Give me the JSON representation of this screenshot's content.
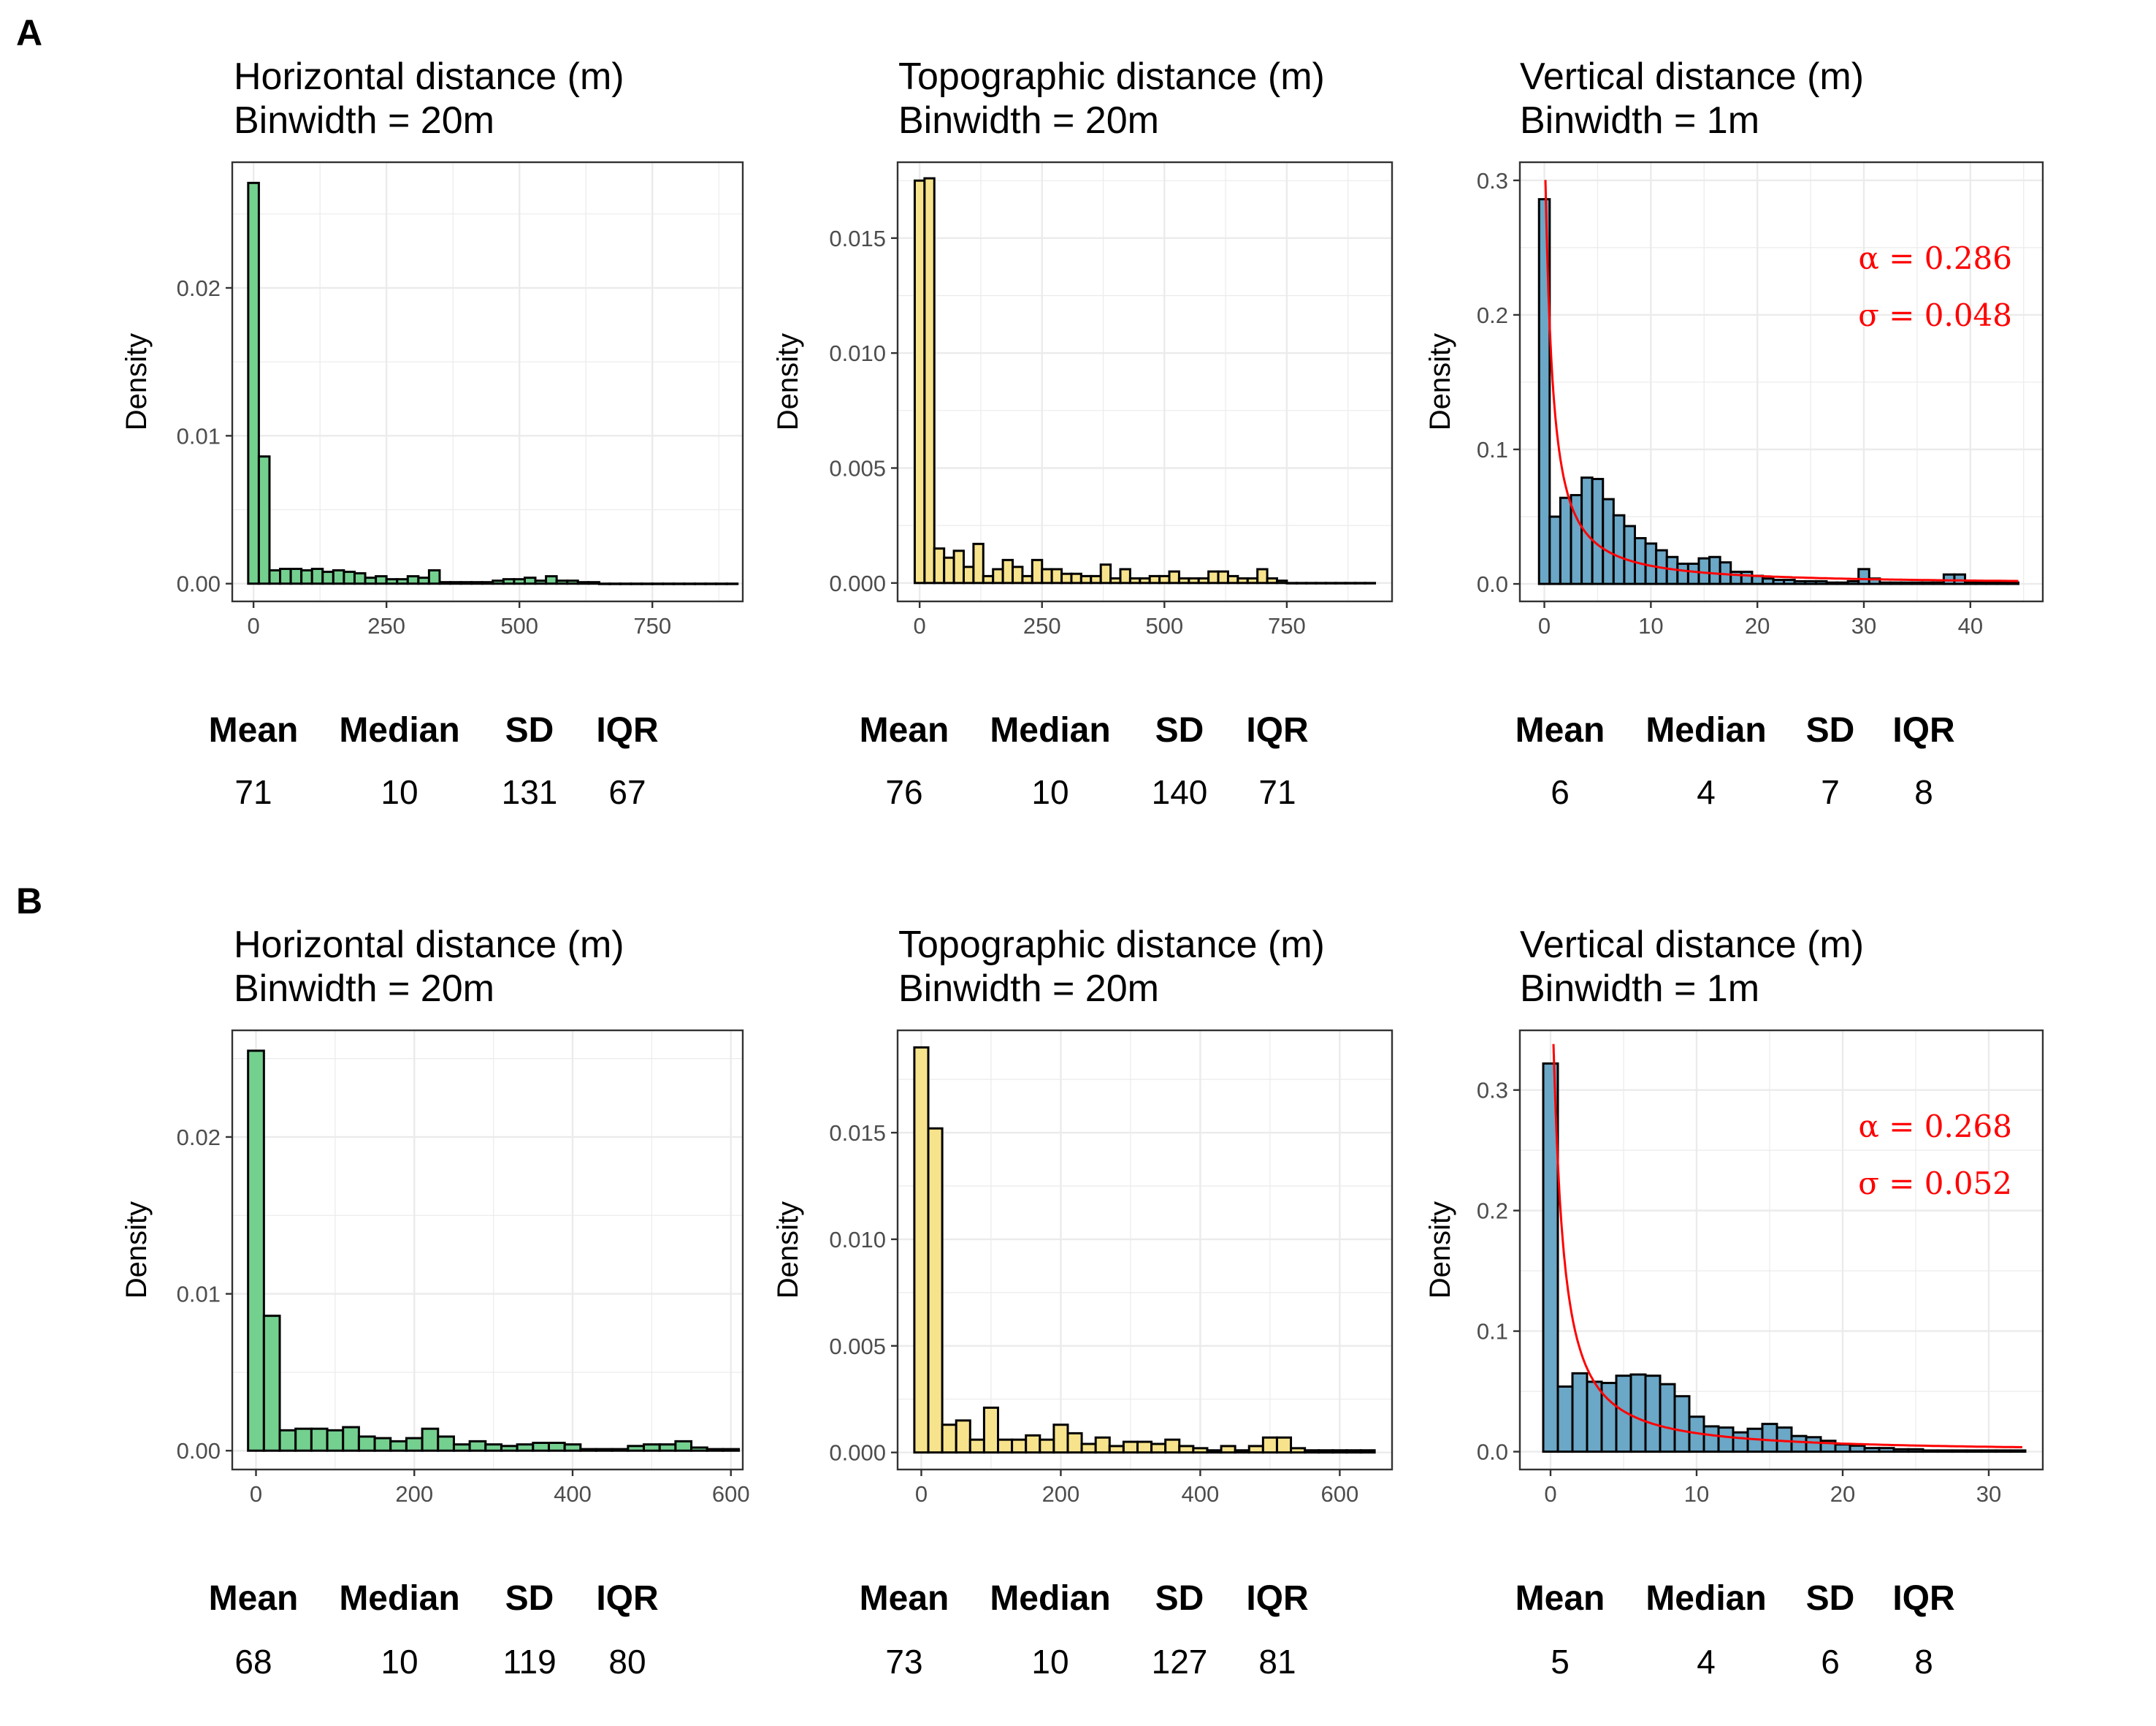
{
  "figure": {
    "panel_labels": [
      "A",
      "B"
    ],
    "stat_headers": [
      "Mean",
      "Median",
      "SD",
      "IQR"
    ]
  },
  "colors": {
    "horizontal": "#74d08f",
    "topographic": "#f7e38c",
    "vertical": "#6ba7c6",
    "fit_line": "#ff0000",
    "bar_outline": "#000000",
    "grid": "#ebebeb"
  },
  "chart_data": [
    {
      "type": "bar",
      "panel": "A",
      "title": "Horizontal distance (m)",
      "subtitle": "Binwidth = 20m",
      "color_key": "horizontal",
      "xlabel": "",
      "ylabel": "Density",
      "xlim": [
        -40,
        920
      ],
      "ylim": [
        -0.0012,
        0.0285
      ],
      "x_ticks": [
        0,
        250,
        500,
        750
      ],
      "y_ticks": [
        0.0,
        0.01,
        0.02
      ],
      "y_tick_labels": [
        "0.00",
        "0.01",
        "0.02"
      ],
      "grid": true,
      "bin_start": -10,
      "bin_width": 20,
      "values": [
        0.0271,
        0.0086,
        0.0009,
        0.001,
        0.001,
        0.0009,
        0.001,
        0.0008,
        0.0009,
        0.0008,
        0.0007,
        0.0004,
        0.0005,
        0.0003,
        0.0003,
        0.0005,
        0.0004,
        0.0009,
        0.0001,
        0.0001,
        0.0001,
        0.0001,
        0.0001,
        0.0002,
        0.0003,
        0.0003,
        0.0004,
        0.0002,
        0.0005,
        0.0002,
        0.0002,
        0.0001,
        0.0001,
        0,
        0,
        0,
        0,
        0,
        0,
        0,
        0,
        0,
        0,
        0,
        0,
        0
      ],
      "stats": {
        "Mean": "71",
        "Median": "10",
        "SD": "131",
        "IQR": "67"
      }
    },
    {
      "type": "bar",
      "panel": "A",
      "title": "Topographic distance (m)",
      "subtitle": "Binwidth = 20m",
      "color_key": "topographic",
      "xlabel": "",
      "ylabel": "Density",
      "xlim": [
        -45,
        965
      ],
      "ylim": [
        -0.0008,
        0.0183
      ],
      "x_ticks": [
        0,
        250,
        500,
        750
      ],
      "y_ticks": [
        0.0,
        0.005,
        0.01,
        0.015
      ],
      "y_tick_labels": [
        "0.000",
        "0.005",
        "0.010",
        "0.015"
      ],
      "grid": true,
      "bin_start": -10,
      "bin_width": 20,
      "values": [
        0.0175,
        0.0176,
        0.0015,
        0.0011,
        0.0014,
        0.0007,
        0.0017,
        0.0003,
        0.0006,
        0.001,
        0.0007,
        0.0003,
        0.001,
        0.0006,
        0.0006,
        0.0004,
        0.0004,
        0.0003,
        0.0003,
        0.0008,
        0.0002,
        0.0006,
        0.0002,
        0.0002,
        0.0003,
        0.0003,
        0.0005,
        0.0002,
        0.0002,
        0.0002,
        0.0005,
        0.0005,
        0.0003,
        0.0002,
        0.0002,
        0.0006,
        0.0002,
        0.0001,
        0,
        0,
        0,
        0,
        0,
        0,
        0,
        0,
        0
      ],
      "stats": {
        "Mean": "76",
        "Median": "10",
        "SD": "140",
        "IQR": "71"
      }
    },
    {
      "type": "bar",
      "panel": "A",
      "title": "Vertical distance (m)",
      "subtitle": "Binwidth = 1m",
      "color_key": "vertical",
      "xlabel": "",
      "ylabel": "Density",
      "xlim": [
        -2.3,
        46.8
      ],
      "ylim": [
        -0.013,
        0.3135
      ],
      "x_ticks": [
        0,
        10,
        20,
        30,
        40
      ],
      "y_ticks": [
        0.0,
        0.1,
        0.2,
        0.3
      ],
      "y_tick_labels": [
        "0.0",
        "0.1",
        "0.2",
        "0.3"
      ],
      "grid": true,
      "bin_start": -0.5,
      "bin_width": 1,
      "values": [
        0.286,
        0.05,
        0.064,
        0.066,
        0.079,
        0.078,
        0.063,
        0.051,
        0.043,
        0.034,
        0.03,
        0.025,
        0.02,
        0.015,
        0.015,
        0.019,
        0.02,
        0.016,
        0.009,
        0.009,
        0.006,
        0.004,
        0.003,
        0.003,
        0.002,
        0.002,
        0.002,
        0.001,
        0.001,
        0.002,
        0.011,
        0.004,
        0.001,
        0.001,
        0.001,
        0.001,
        0.001,
        0.001,
        0.007,
        0.007,
        0.001,
        0.001,
        0.001,
        0.001,
        0.001
      ],
      "fit": {
        "type": "lognormal-like",
        "peak_x": 0.1,
        "x_end": 44.5
      },
      "annotations": [
        "α = 0.286",
        "σ = 0.048"
      ],
      "stats": {
        "Mean": "6",
        "Median": "4",
        "SD": "7",
        "IQR": "8"
      }
    },
    {
      "type": "bar",
      "panel": "B",
      "title": "Horizontal distance (m)",
      "subtitle": "Binwidth = 20m",
      "color_key": "horizontal",
      "xlabel": "",
      "ylabel": "Density",
      "xlim": [
        -30,
        615
      ],
      "ylim": [
        -0.0012,
        0.0268
      ],
      "x_ticks": [
        0,
        200,
        400,
        600
      ],
      "y_ticks": [
        0.0,
        0.01,
        0.02
      ],
      "y_tick_labels": [
        "0.00",
        "0.01",
        "0.02"
      ],
      "grid": true,
      "bin_start": -10,
      "bin_width": 20,
      "values": [
        0.0255,
        0.0086,
        0.0013,
        0.0014,
        0.0014,
        0.0013,
        0.0015,
        0.0009,
        0.0008,
        0.0006,
        0.0008,
        0.0014,
        0.0009,
        0.0004,
        0.0006,
        0.0004,
        0.0003,
        0.0004,
        0.0005,
        0.0005,
        0.0004,
        0.0001,
        0.0001,
        0.0001,
        0.0003,
        0.0004,
        0.0004,
        0.0006,
        0.0002,
        0.0001,
        0.0001
      ],
      "stats": {
        "Mean": "68",
        "Median": "10",
        "SD": "119",
        "IQR": "80"
      }
    },
    {
      "type": "bar",
      "panel": "B",
      "title": "Topographic distance (m)",
      "subtitle": "Binwidth = 20m",
      "color_key": "topographic",
      "xlabel": "",
      "ylabel": "Density",
      "xlim": [
        -34,
        675
      ],
      "ylim": [
        -0.0008,
        0.0198
      ],
      "x_ticks": [
        0,
        200,
        400,
        600
      ],
      "y_ticks": [
        0.0,
        0.005,
        0.01,
        0.015
      ],
      "y_tick_labels": [
        "0.000",
        "0.005",
        "0.010",
        "0.015"
      ],
      "grid": true,
      "bin_start": -10,
      "bin_width": 20,
      "values": [
        0.019,
        0.0152,
        0.0013,
        0.0015,
        0.0006,
        0.0021,
        0.0006,
        0.0006,
        0.0008,
        0.0006,
        0.0013,
        0.0009,
        0.0004,
        0.0007,
        0.0003,
        0.0005,
        0.0005,
        0.0004,
        0.0006,
        0.0003,
        0.0002,
        0.0001,
        0.0003,
        0.0001,
        0.0003,
        0.0007,
        0.0007,
        0.0002,
        0.0001,
        0.0001,
        0.0001,
        0.0001,
        0.0001
      ],
      "stats": {
        "Mean": "73",
        "Median": "10",
        "SD": "127",
        "IQR": "81"
      }
    },
    {
      "type": "bar",
      "panel": "B",
      "title": "Vertical distance (m)",
      "subtitle": "Binwidth = 1m",
      "color_key": "vertical",
      "xlabel": "",
      "ylabel": "Density",
      "xlim": [
        -2.1,
        33.7
      ],
      "ylim": [
        -0.0148,
        0.3495
      ],
      "x_ticks": [
        0,
        10,
        20,
        30
      ],
      "y_ticks": [
        0.0,
        0.1,
        0.2,
        0.3
      ],
      "y_tick_labels": [
        "0.0",
        "0.1",
        "0.2",
        "0.3"
      ],
      "grid": true,
      "bin_start": -0.5,
      "bin_width": 1,
      "values": [
        0.322,
        0.054,
        0.065,
        0.058,
        0.057,
        0.063,
        0.064,
        0.063,
        0.056,
        0.046,
        0.029,
        0.021,
        0.02,
        0.016,
        0.019,
        0.023,
        0.02,
        0.013,
        0.012,
        0.009,
        0.006,
        0.005,
        0.003,
        0.003,
        0.002,
        0.002,
        0.001,
        0.001,
        0.001,
        0.001,
        0.001,
        0.001,
        0.001
      ],
      "fit": {
        "type": "lognormal-like",
        "peak_x": 0.2,
        "x_end": 32.3
      },
      "annotations": [
        "α = 0.268",
        "σ = 0.052"
      ],
      "stats": {
        "Mean": "5",
        "Median": "4",
        "SD": "6",
        "IQR": "8"
      }
    }
  ]
}
